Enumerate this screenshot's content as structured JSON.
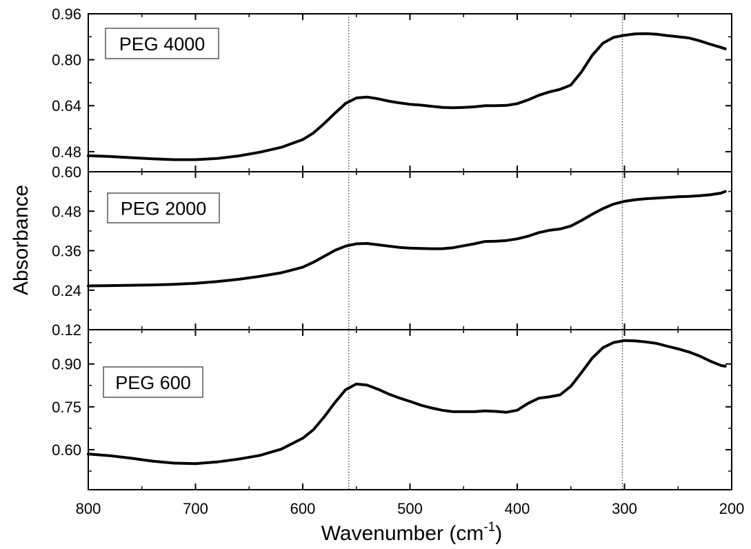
{
  "chart_data": {
    "type": "line",
    "shared_x": {
      "label": "Wavenumber (cm",
      "label_sup": "-1",
      "label_end": ")",
      "range": [
        800,
        200
      ],
      "reversed": true,
      "ticks": [
        800,
        700,
        600,
        500,
        400,
        300,
        200
      ],
      "tick_labels": [
        "800",
        "700",
        "600",
        "500",
        "400",
        "300",
        "200"
      ]
    },
    "ylabel": "Absorbance",
    "reference_lines_x": [
      557,
      302
    ],
    "panels": [
      {
        "label": "PEG 4000",
        "ylim": [
          0.41,
          0.96
        ],
        "ticks": [
          0.96,
          0.8,
          0.64,
          0.48
        ],
        "tick_labels": [
          "0.96",
          "0.80",
          "0.64",
          "0.48"
        ],
        "series": [
          {
            "x": [
              800,
              780,
              760,
              740,
              720,
              700,
              680,
              660,
              640,
              620,
              600,
              590,
              580,
              570,
              560,
              550,
              540,
              530,
              520,
              510,
              500,
              490,
              480,
              470,
              460,
              450,
              440,
              430,
              420,
              410,
              400,
              390,
              380,
              370,
              360,
              350,
              340,
              330,
              320,
              310,
              300,
              290,
              280,
              270,
              260,
              250,
              240,
              230,
              220,
              210,
              206
            ],
            "y": [
              0.466,
              0.463,
              0.459,
              0.455,
              0.452,
              0.452,
              0.456,
              0.465,
              0.478,
              0.495,
              0.522,
              0.545,
              0.578,
              0.614,
              0.648,
              0.667,
              0.67,
              0.664,
              0.656,
              0.65,
              0.645,
              0.642,
              0.638,
              0.634,
              0.633,
              0.634,
              0.636,
              0.64,
              0.64,
              0.641,
              0.647,
              0.66,
              0.676,
              0.688,
              0.697,
              0.712,
              0.758,
              0.816,
              0.858,
              0.878,
              0.885,
              0.89,
              0.891,
              0.889,
              0.884,
              0.88,
              0.876,
              0.866,
              0.854,
              0.843,
              0.838
            ]
          }
        ]
      },
      {
        "label": "PEG 2000",
        "ylim": [
          0.12,
          0.6
        ],
        "ticks": [
          0.6,
          0.48,
          0.36,
          0.24,
          0.12
        ],
        "tick_labels": [
          "0.60",
          "0.48",
          "0.36",
          "0.24",
          "0.12"
        ],
        "series": [
          {
            "x": [
              800,
              780,
              760,
              740,
              720,
              700,
              680,
              660,
              640,
              620,
              600,
              590,
              580,
              570,
              560,
              550,
              540,
              530,
              520,
              510,
              500,
              490,
              480,
              470,
              460,
              450,
              440,
              430,
              420,
              410,
              400,
              390,
              380,
              370,
              360,
              350,
              340,
              330,
              320,
              310,
              300,
              290,
              280,
              270,
              260,
              250,
              240,
              230,
              220,
              210,
              206
            ],
            "y": [
              0.253,
              0.254,
              0.255,
              0.256,
              0.258,
              0.261,
              0.266,
              0.273,
              0.282,
              0.293,
              0.31,
              0.325,
              0.343,
              0.361,
              0.374,
              0.381,
              0.382,
              0.378,
              0.374,
              0.37,
              0.368,
              0.367,
              0.366,
              0.366,
              0.369,
              0.375,
              0.381,
              0.388,
              0.389,
              0.391,
              0.396,
              0.404,
              0.415,
              0.422,
              0.426,
              0.435,
              0.452,
              0.471,
              0.488,
              0.502,
              0.51,
              0.515,
              0.518,
              0.52,
              0.522,
              0.524,
              0.525,
              0.527,
              0.53,
              0.535,
              0.54
            ]
          }
        ]
      },
      {
        "label": "PEG 600",
        "ylim": [
          0.46,
          1.02
        ],
        "ticks": [
          0.9,
          0.75,
          0.6
        ],
        "tick_labels": [
          "0.90",
          "0.75",
          "0.60"
        ],
        "series": [
          {
            "x": [
              800,
              780,
              760,
              740,
              720,
              700,
              680,
              660,
              640,
              620,
              600,
              590,
              580,
              570,
              560,
              550,
              540,
              530,
              520,
              510,
              500,
              490,
              480,
              470,
              460,
              450,
              440,
              430,
              420,
              410,
              400,
              390,
              380,
              370,
              360,
              350,
              340,
              330,
              320,
              310,
              300,
              290,
              280,
              270,
              260,
              250,
              240,
              230,
              220,
              210,
              206
            ],
            "y": [
              0.585,
              0.579,
              0.57,
              0.56,
              0.553,
              0.551,
              0.557,
              0.567,
              0.58,
              0.602,
              0.64,
              0.67,
              0.715,
              0.765,
              0.81,
              0.83,
              0.826,
              0.812,
              0.795,
              0.781,
              0.769,
              0.756,
              0.746,
              0.738,
              0.733,
              0.733,
              0.733,
              0.736,
              0.734,
              0.731,
              0.738,
              0.762,
              0.78,
              0.785,
              0.792,
              0.822,
              0.87,
              0.921,
              0.957,
              0.975,
              0.982,
              0.981,
              0.977,
              0.972,
              0.962,
              0.953,
              0.942,
              0.928,
              0.91,
              0.895,
              0.892
            ]
          }
        ]
      }
    ]
  }
}
